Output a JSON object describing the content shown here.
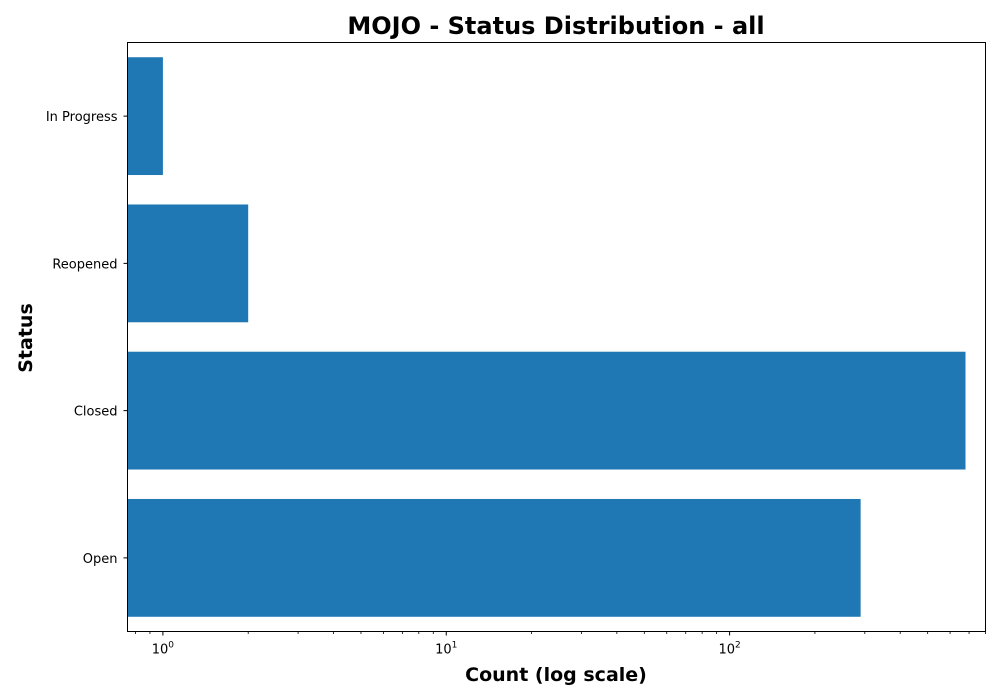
{
  "chart_data": {
    "type": "bar",
    "orientation": "horizontal",
    "title": "MOJO - Status Distribution - all",
    "xlabel": "Count (log scale)",
    "ylabel": "Status",
    "x_scale": "log",
    "xlim": [
      0.75,
      800
    ],
    "x_ticks": [
      {
        "base": "10",
        "exp": "0",
        "value": 1
      },
      {
        "base": "10",
        "exp": "1",
        "value": 10
      },
      {
        "base": "10",
        "exp": "2",
        "value": 100
      }
    ],
    "categories": [
      "Open",
      "Closed",
      "Reopened",
      "In Progress"
    ],
    "values": [
      290,
      680,
      2,
      1
    ],
    "bar_color": "#1f77b4",
    "grid": false,
    "legend": "none"
  }
}
